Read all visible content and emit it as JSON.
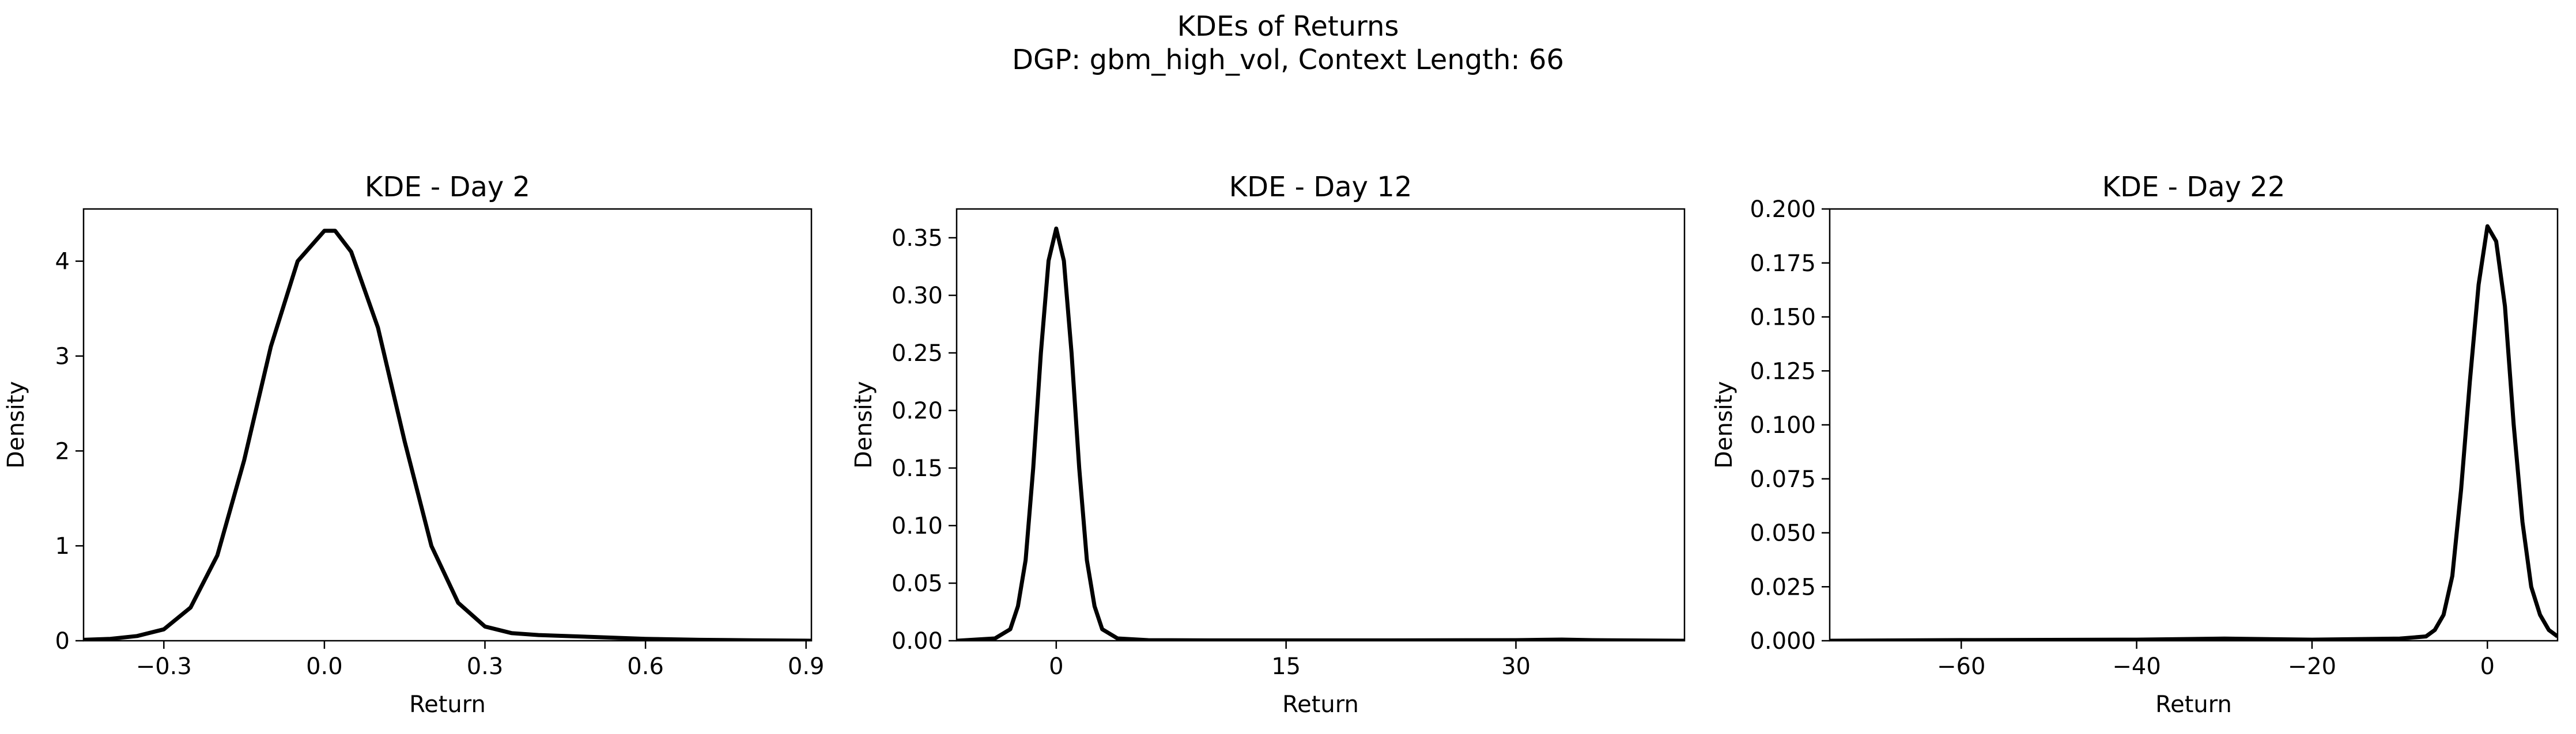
{
  "figure": {
    "suptitle_line1": "KDEs of Returns",
    "suptitle_line2": "DGP: gbm_high_vol, Context Length: 66"
  },
  "chart_data": [
    {
      "type": "line",
      "title": "KDE - Day 2",
      "xlabel": "Return",
      "ylabel": "Density",
      "xlim": [
        -0.45,
        0.91
      ],
      "ylim": [
        0,
        4.55
      ],
      "xticks": [
        -0.3,
        0.0,
        0.3,
        0.6,
        0.9
      ],
      "xtick_labels": [
        "−0.3",
        "0.0",
        "0.3",
        "0.6",
        "0.9"
      ],
      "yticks": [
        0,
        1,
        2,
        3,
        4
      ],
      "ytick_labels": [
        "0",
        "1",
        "2",
        "3",
        "4"
      ],
      "grid": false,
      "line_color": "#000000",
      "series": [
        {
          "x": [
            -0.45,
            -0.4,
            -0.35,
            -0.3,
            -0.25,
            -0.2,
            -0.15,
            -0.1,
            -0.05,
            0.0,
            0.02,
            0.05,
            0.1,
            0.15,
            0.2,
            0.25,
            0.3,
            0.35,
            0.4,
            0.5,
            0.6,
            0.7,
            0.8,
            0.91
          ],
          "y": [
            0.01,
            0.02,
            0.05,
            0.12,
            0.35,
            0.9,
            1.9,
            3.1,
            4.0,
            4.32,
            4.32,
            4.1,
            3.3,
            2.1,
            1.0,
            0.4,
            0.15,
            0.08,
            0.06,
            0.04,
            0.02,
            0.01,
            0.005,
            0.0
          ]
        }
      ]
    },
    {
      "type": "line",
      "title": "KDE - Day 12",
      "xlabel": "Return",
      "ylabel": "Density",
      "xlim": [
        -6.5,
        41
      ],
      "ylim": [
        0,
        0.375
      ],
      "xticks": [
        0,
        15,
        30
      ],
      "xtick_labels": [
        "0",
        "15",
        "30"
      ],
      "yticks": [
        0.0,
        0.05,
        0.1,
        0.15,
        0.2,
        0.25,
        0.3,
        0.35
      ],
      "ytick_labels": [
        "0.00",
        "0.05",
        "0.10",
        "0.15",
        "0.20",
        "0.25",
        "0.30",
        "0.35"
      ],
      "grid": false,
      "line_color": "#000000",
      "series": [
        {
          "x": [
            -6.5,
            -4,
            -3,
            -2.5,
            -2,
            -1.5,
            -1,
            -0.5,
            0,
            0.5,
            1,
            1.5,
            2,
            2.5,
            3,
            4,
            6,
            10,
            20,
            30,
            33,
            35,
            41
          ],
          "y": [
            0.0,
            0.002,
            0.01,
            0.03,
            0.07,
            0.15,
            0.25,
            0.33,
            0.358,
            0.33,
            0.25,
            0.15,
            0.07,
            0.03,
            0.01,
            0.002,
            0.0005,
            0.0003,
            0.0003,
            0.0005,
            0.001,
            0.0005,
            0.0
          ]
        }
      ]
    },
    {
      "type": "line",
      "title": "KDE - Day 22",
      "xlabel": "Return",
      "ylabel": "Density",
      "xlim": [
        -75,
        8
      ],
      "ylim": [
        0,
        0.2
      ],
      "xticks": [
        -60,
        -40,
        -20,
        0
      ],
      "xtick_labels": [
        "−60",
        "−40",
        "−20",
        "0"
      ],
      "yticks": [
        0.0,
        0.025,
        0.05,
        0.075,
        0.1,
        0.125,
        0.15,
        0.175,
        0.2
      ],
      "ytick_labels": [
        "0.000",
        "0.025",
        "0.050",
        "0.075",
        "0.100",
        "0.125",
        "0.150",
        "0.175",
        "0.200"
      ],
      "grid": false,
      "line_color": "#000000",
      "series": [
        {
          "x": [
            -75,
            -60,
            -40,
            -30,
            -20,
            -10,
            -7,
            -6,
            -5,
            -4,
            -3,
            -2,
            -1,
            0,
            1,
            2,
            3,
            4,
            5,
            6,
            7,
            8
          ],
          "y": [
            0.0,
            0.0003,
            0.0005,
            0.001,
            0.0005,
            0.001,
            0.002,
            0.005,
            0.012,
            0.03,
            0.07,
            0.12,
            0.165,
            0.192,
            0.185,
            0.155,
            0.1,
            0.055,
            0.025,
            0.012,
            0.005,
            0.002
          ]
        }
      ]
    }
  ]
}
